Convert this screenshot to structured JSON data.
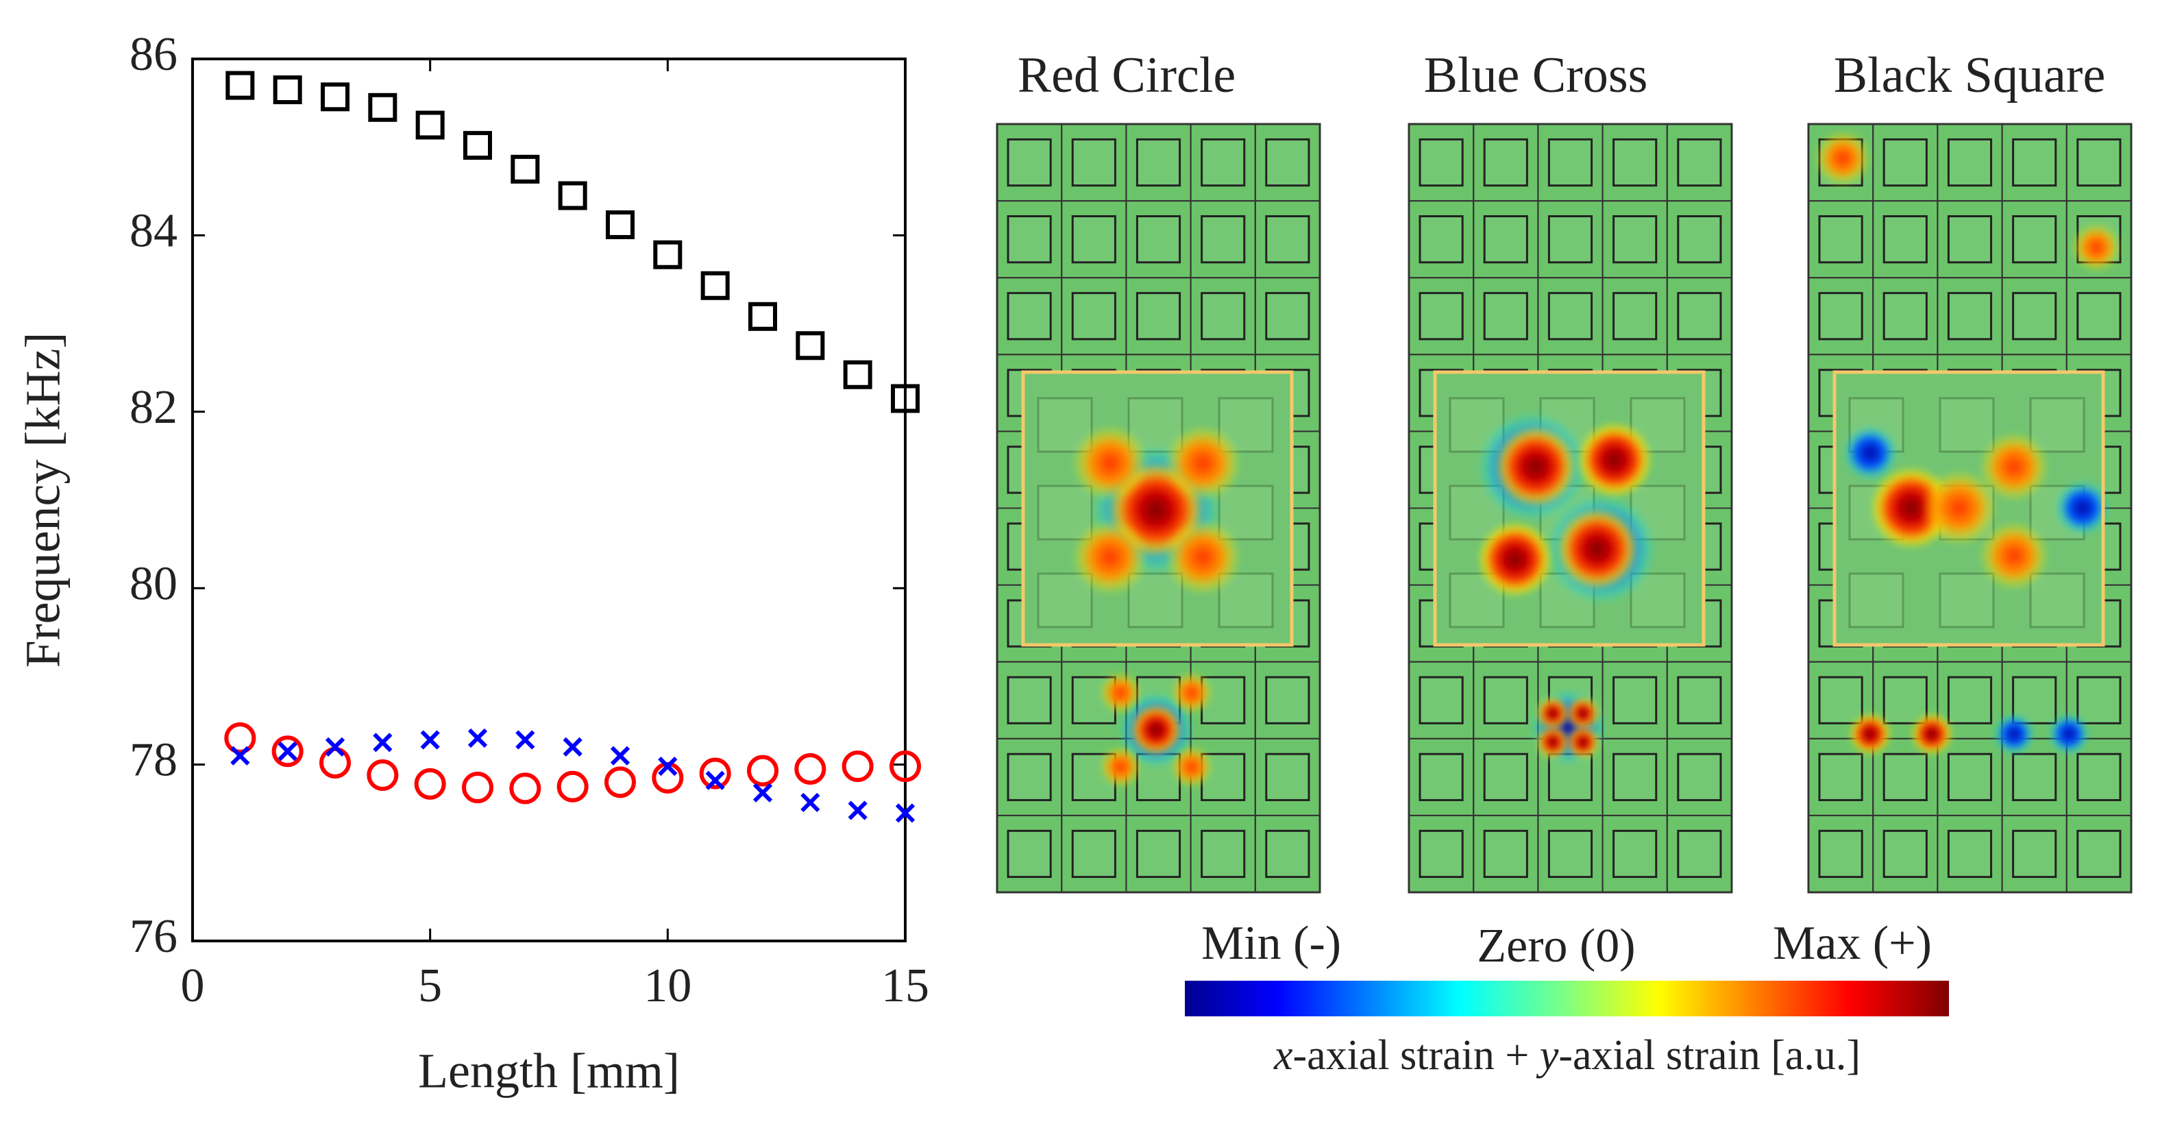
{
  "chart_data": {
    "type": "scatter",
    "xlabel": "Length [mm]",
    "ylabel": "Frequency [kHz]",
    "x": [
      1,
      2,
      3,
      4,
      5,
      6,
      7,
      8,
      9,
      10,
      11,
      12,
      13,
      14,
      15
    ],
    "series": [
      {
        "name": "Red Circle",
        "color": "#ff0000",
        "marker": "circle",
        "values": [
          78.3,
          78.15,
          78.02,
          77.88,
          77.78,
          77.74,
          77.73,
          77.75,
          77.8,
          77.85,
          77.9,
          77.93,
          77.95,
          77.98,
          77.98
        ]
      },
      {
        "name": "Blue Cross",
        "color": "#0000ff",
        "marker": "cross",
        "values": [
          78.1,
          78.15,
          78.2,
          78.25,
          78.28,
          78.3,
          78.28,
          78.2,
          78.1,
          77.98,
          77.82,
          77.68,
          77.57,
          77.48,
          77.45
        ]
      },
      {
        "name": "Black Square",
        "color": "#000000",
        "marker": "square",
        "values": [
          85.7,
          85.65,
          85.57,
          85.45,
          85.25,
          85.02,
          84.75,
          84.45,
          84.12,
          83.78,
          83.43,
          83.08,
          82.75,
          82.42,
          82.15
        ]
      }
    ],
    "xlim": [
      0,
      15
    ],
    "xticks": [
      0,
      5,
      10,
      15
    ],
    "ylim": [
      76,
      86
    ],
    "yticks": [
      76,
      78,
      80,
      82,
      84,
      86
    ],
    "grid": false
  },
  "colorbar": {
    "min_label": "Min (-)",
    "zero_label": "Zero (0)",
    "max_label": "Max (+)",
    "caption": [
      "x",
      "-axial strain + ",
      "y",
      "-axial strain  [a.u.]"
    ]
  }
}
